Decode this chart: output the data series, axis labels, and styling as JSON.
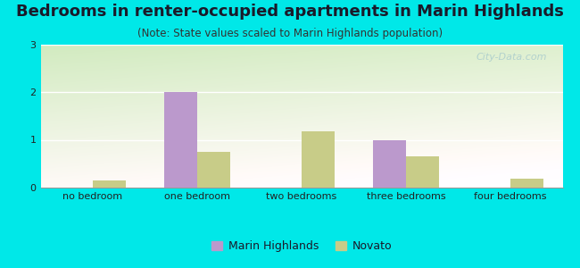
{
  "title": "Bedrooms in renter-occupied apartments in Marin Highlands",
  "subtitle": "(Note: State values scaled to Marin Highlands population)",
  "categories": [
    "no bedroom",
    "one bedroom",
    "two bedrooms",
    "three bedrooms",
    "four bedrooms"
  ],
  "marin_highlands": [
    0,
    2.0,
    0,
    1.0,
    0
  ],
  "novato": [
    0.15,
    0.75,
    1.18,
    0.65,
    0.18
  ],
  "marin_color": "#bb99cc",
  "novato_color": "#c8cc88",
  "background_color": "#00e8e8",
  "ylim": [
    0,
    3
  ],
  "yticks": [
    0,
    1,
    2,
    3
  ],
  "bar_width": 0.32,
  "title_fontsize": 13,
  "subtitle_fontsize": 8.5,
  "tick_fontsize": 8,
  "legend_fontsize": 9,
  "watermark": "City-Data.com"
}
